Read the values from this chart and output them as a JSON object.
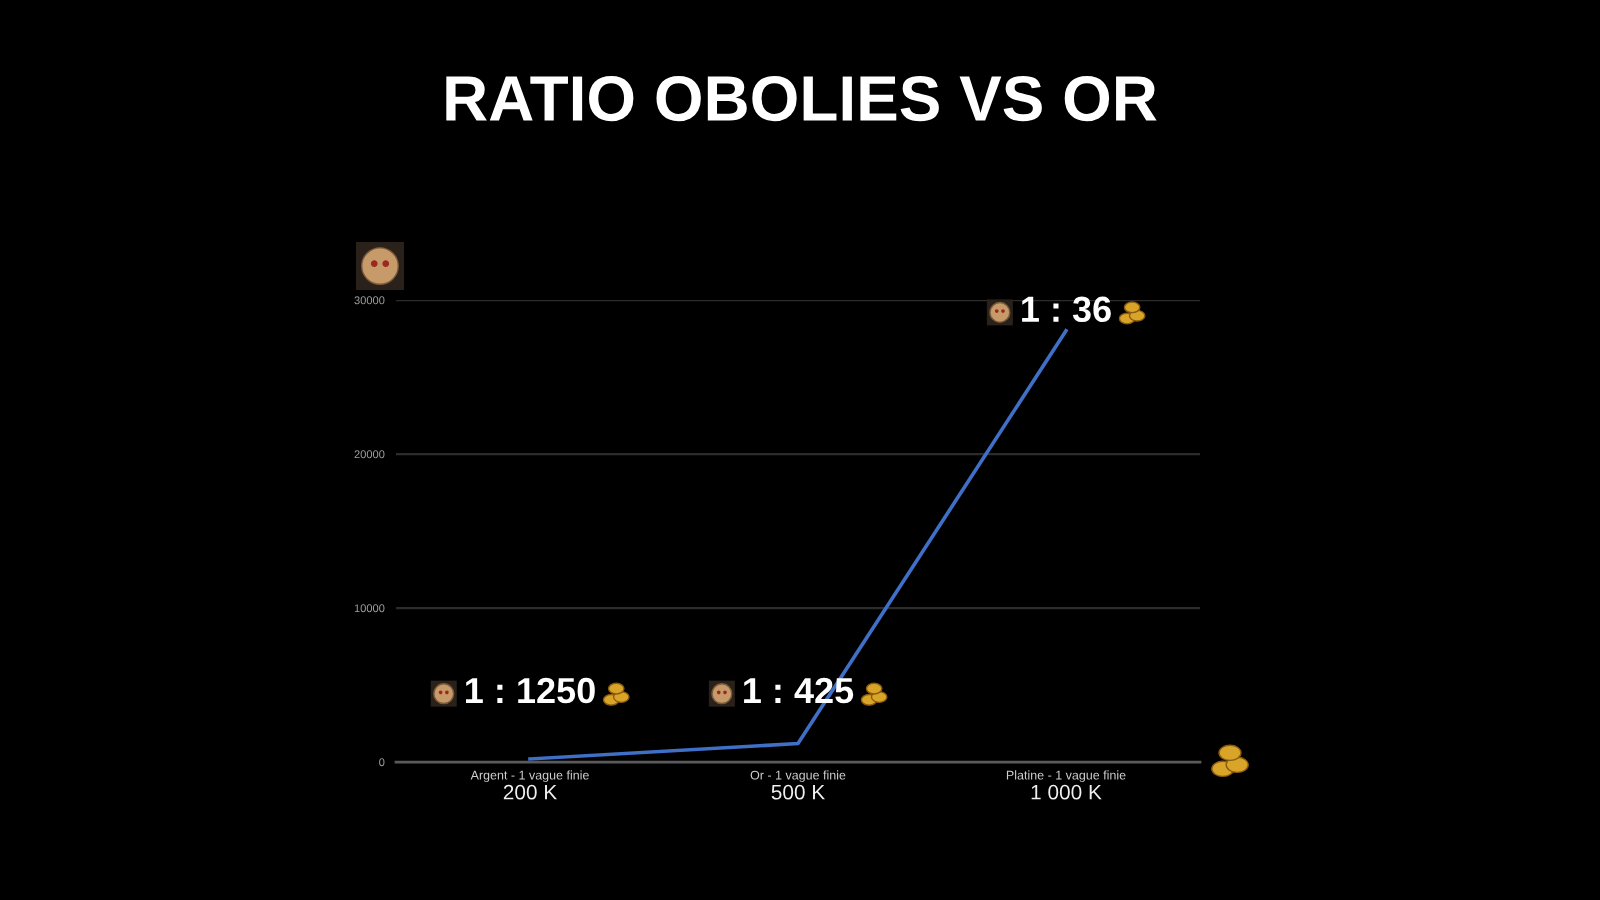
{
  "chart_data": {
    "type": "line",
    "title": "RATIO OBOLIES VS OR",
    "categories": [
      "Argent - 1 vague finie\n200 K",
      "Or - 1 vague finie\n500 K",
      "Platine - 1 vague finie\n1 000 K"
    ],
    "series": [
      {
        "color": "#3f6fc6",
        "values": [
          200,
          1200,
          28000
        ]
      }
    ],
    "ylim": [
      0,
      30000
    ],
    "yticks": [
      0,
      10000,
      20000,
      30000
    ],
    "grid": "y",
    "marker": "none",
    "line_style": "solid",
    "annotations": [
      "1 : 1250",
      "1 : 425",
      "1 : 36"
    ]
  }
}
